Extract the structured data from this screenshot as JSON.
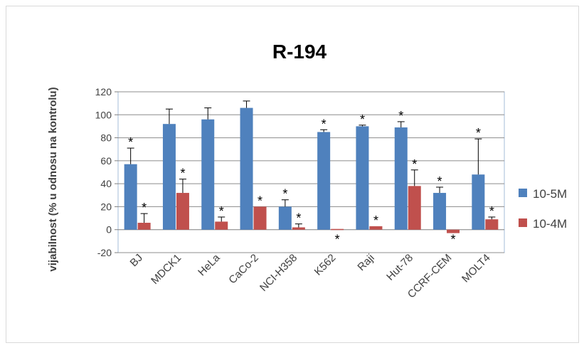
{
  "chart_data": {
    "type": "bar",
    "title": "R-194",
    "xlabel": "",
    "ylabel": "vijabilnost (% u odnosu na kontrolu)",
    "ylim": [
      -20,
      120
    ],
    "yticks": [
      -20,
      0,
      20,
      40,
      60,
      80,
      100,
      120
    ],
    "grid": true,
    "legend_position": "right",
    "categories": [
      "BJ",
      "MDCK1",
      "HeLa",
      "CaCo-2",
      "NCI-H358",
      "K562",
      "Raji",
      "Hut-78",
      "CCRF-CEM",
      "MOLT4"
    ],
    "series": [
      {
        "name": "10-5M",
        "color": "#4f81bd",
        "values": [
          57,
          92,
          96,
          106,
          20,
          85,
          90,
          89,
          32,
          48
        ],
        "error": [
          14,
          13,
          10,
          6,
          6,
          2,
          1,
          5,
          5,
          31
        ],
        "significance": [
          "*",
          "",
          "",
          "",
          "*",
          "*",
          "*",
          "*",
          "*",
          "*"
        ]
      },
      {
        "name": "10-4M",
        "color": "#c0504d",
        "values": [
          6,
          32,
          7,
          20,
          2,
          0,
          3,
          38,
          -3,
          9
        ],
        "error": [
          8,
          12,
          4,
          0,
          3,
          0,
          0,
          14,
          0,
          2
        ],
        "significance": [
          "*",
          "*",
          "*",
          "*",
          "*",
          "*",
          "*",
          "*",
          "*",
          "*"
        ]
      }
    ]
  }
}
